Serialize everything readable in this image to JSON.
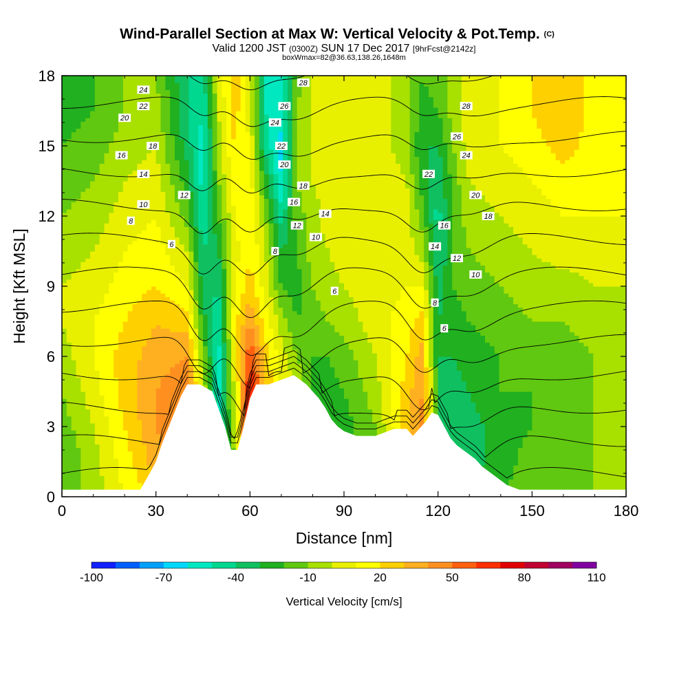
{
  "chart_data": {
    "type": "heatmap",
    "title": "Wind-Parallel Section at Max W: Vertical Velocity & Pot.Temp.",
    "title_mark": "(C)",
    "subtitle_parts": [
      "Valid 1200 JST ",
      "(0300Z)",
      " SUN 17 Dec 2017 ",
      "[9hrFcst@2142z]"
    ],
    "subtitle2": "boxWmax=82@36.63,138.26,1648m",
    "xlabel": "Distance [nm]",
    "ylabel": "Height [Kft MSL]",
    "xlim": [
      0,
      180
    ],
    "ylim": [
      0,
      18
    ],
    "xticks": [
      0,
      30,
      60,
      90,
      120,
      150,
      180
    ],
    "yticks": [
      0,
      3,
      6,
      9,
      12,
      15,
      18
    ],
    "grid": false,
    "colorbar": {
      "label": "Vertical Velocity [cm/s]",
      "tick_labels": [
        "-100",
        "-70",
        "-40",
        "-10",
        "20",
        "50",
        "80",
        "110"
      ],
      "range": [
        -100,
        110
      ],
      "colors": [
        "#1020ff",
        "#0060ff",
        "#00a0ff",
        "#00d8ff",
        "#00e8c0",
        "#00d890",
        "#10c060",
        "#20b020",
        "#60c810",
        "#a8e000",
        "#e8f000",
        "#ffff00",
        "#ffd000",
        "#ffb020",
        "#ff9020",
        "#ff6010",
        "#ff3000",
        "#e00000",
        "#c00030",
        "#a00060",
        "#8000a0"
      ]
    },
    "field": {
      "x": [
        0,
        10,
        20,
        30,
        40,
        45,
        50,
        55,
        60,
        65,
        70,
        75,
        80,
        85,
        90,
        100,
        110,
        115,
        120,
        125,
        130,
        140,
        150,
        160,
        170,
        180
      ],
      "y": [
        0,
        1.5,
        3,
        4.5,
        6,
        7.5,
        9,
        10.5,
        12,
        13.5,
        15,
        16.5,
        18
      ],
      "w": [
        [
          -20,
          -5,
          10,
          25,
          40,
          10,
          -40,
          -10,
          60,
          20,
          10,
          5,
          -10,
          -25,
          -20,
          -10,
          20,
          40,
          -20,
          -35,
          -30,
          -20,
          -15,
          -15,
          -10,
          -10
        ],
        [
          -20,
          -5,
          15,
          35,
          50,
          10,
          -45,
          -10,
          75,
          25,
          10,
          5,
          -15,
          -30,
          -25,
          -10,
          20,
          45,
          -25,
          -40,
          -35,
          -25,
          -15,
          -15,
          -10,
          -10
        ],
        [
          -15,
          0,
          20,
          40,
          55,
          5,
          -50,
          -5,
          80,
          30,
          10,
          5,
          -20,
          -30,
          -25,
          -10,
          25,
          45,
          -30,
          -40,
          -35,
          -25,
          -20,
          -15,
          -10,
          -10
        ],
        [
          -10,
          5,
          25,
          40,
          50,
          0,
          -55,
          0,
          75,
          30,
          10,
          0,
          -20,
          -25,
          -20,
          -5,
          25,
          40,
          -30,
          -35,
          -30,
          -20,
          -20,
          -15,
          -10,
          -10
        ],
        [
          -5,
          10,
          25,
          35,
          40,
          -10,
          -55,
          10,
          60,
          25,
          5,
          -10,
          -20,
          -20,
          -15,
          0,
          20,
          35,
          -30,
          -30,
          -25,
          -20,
          -15,
          -15,
          -10,
          -10
        ],
        [
          0,
          10,
          20,
          30,
          25,
          -25,
          -50,
          15,
          40,
          15,
          -5,
          -20,
          -15,
          -10,
          -5,
          5,
          15,
          25,
          -30,
          -25,
          -20,
          -15,
          -10,
          -10,
          -5,
          -5
        ],
        [
          0,
          5,
          15,
          20,
          10,
          -35,
          -40,
          10,
          25,
          5,
          -20,
          -25,
          -10,
          -5,
          0,
          5,
          10,
          10,
          -35,
          -20,
          -15,
          -10,
          -5,
          -5,
          0,
          0
        ],
        [
          -5,
          0,
          10,
          15,
          0,
          -40,
          -30,
          5,
          20,
          0,
          -30,
          -20,
          -5,
          0,
          5,
          10,
          5,
          -5,
          -40,
          -20,
          -10,
          -5,
          0,
          5,
          5,
          5
        ],
        [
          -10,
          -5,
          5,
          10,
          -15,
          -50,
          -20,
          10,
          20,
          -10,
          -45,
          -15,
          -5,
          5,
          5,
          10,
          5,
          -15,
          -45,
          -15,
          -5,
          0,
          5,
          10,
          10,
          10
        ],
        [
          -15,
          -10,
          0,
          5,
          -25,
          -55,
          -10,
          15,
          15,
          -25,
          -60,
          -10,
          0,
          5,
          5,
          10,
          0,
          -25,
          -40,
          -15,
          0,
          5,
          10,
          15,
          15,
          10
        ],
        [
          -20,
          -15,
          -5,
          0,
          -35,
          -55,
          -5,
          20,
          10,
          -45,
          -65,
          -5,
          0,
          5,
          5,
          5,
          -5,
          -30,
          -30,
          -10,
          5,
          10,
          15,
          25,
          15,
          10
        ],
        [
          -25,
          -20,
          -10,
          -5,
          -40,
          -50,
          0,
          25,
          5,
          -50,
          -55,
          -10,
          0,
          5,
          10,
          5,
          -5,
          -25,
          -20,
          -5,
          5,
          10,
          20,
          30,
          15,
          10
        ],
        [
          -25,
          -20,
          -10,
          -10,
          -40,
          -45,
          5,
          25,
          5,
          -50,
          -50,
          -15,
          0,
          5,
          10,
          5,
          -5,
          -20,
          -15,
          -5,
          5,
          10,
          20,
          30,
          15,
          10
        ]
      ]
    },
    "terrain": {
      "x": [
        0,
        25,
        28,
        30,
        32,
        35,
        38,
        40,
        44,
        48,
        52,
        54,
        56,
        58,
        60,
        62,
        66,
        70,
        74,
        78,
        82,
        84,
        86,
        88,
        90,
        94,
        100,
        106,
        110,
        112,
        114,
        116,
        118,
        120,
        122,
        124,
        126,
        128,
        130,
        132,
        134,
        136,
        140,
        142,
        146,
        150,
        155,
        160,
        170,
        180
      ],
      "h": [
        0.3,
        0.3,
        1.0,
        1.5,
        2.3,
        3.3,
        4.3,
        4.8,
        4.8,
        4.5,
        3.0,
        2.0,
        2.0,
        3.0,
        4.2,
        4.8,
        4.8,
        5.0,
        5.2,
        4.8,
        4.2,
        3.8,
        3.3,
        3.0,
        2.8,
        2.6,
        2.6,
        2.9,
        2.9,
        2.6,
        2.9,
        3.2,
        3.6,
        3.5,
        3.0,
        2.5,
        2.2,
        2.0,
        1.8,
        1.6,
        1.3,
        1.1,
        0.7,
        0.5,
        0.3,
        0.3,
        0.3,
        0.3,
        0.3,
        0.3
      ]
    },
    "contours": {
      "theta_values": [
        4,
        6,
        8,
        10,
        12,
        14,
        16,
        18,
        20,
        22,
        24,
        26,
        28
      ],
      "labels": [
        {
          "text": "24",
          "x": 26,
          "y": 17.4
        },
        {
          "text": "22",
          "x": 26,
          "y": 16.7
        },
        {
          "text": "20",
          "x": 20,
          "y": 16.2
        },
        {
          "text": "18",
          "x": 29,
          "y": 15.0
        },
        {
          "text": "16",
          "x": 19,
          "y": 14.6
        },
        {
          "text": "14",
          "x": 26,
          "y": 13.8
        },
        {
          "text": "10",
          "x": 26,
          "y": 12.5
        },
        {
          "text": "8",
          "x": 22,
          "y": 11.8
        },
        {
          "text": "12",
          "x": 39,
          "y": 12.9
        },
        {
          "text": "6",
          "x": 35,
          "y": 10.8
        },
        {
          "text": "28",
          "x": 77,
          "y": 17.7
        },
        {
          "text": "26",
          "x": 71,
          "y": 16.7
        },
        {
          "text": "24",
          "x": 68,
          "y": 16.0
        },
        {
          "text": "22",
          "x": 70,
          "y": 15.0
        },
        {
          "text": "20",
          "x": 71,
          "y": 14.2
        },
        {
          "text": "18",
          "x": 77,
          "y": 13.3
        },
        {
          "text": "16",
          "x": 74,
          "y": 12.6
        },
        {
          "text": "14",
          "x": 84,
          "y": 12.1
        },
        {
          "text": "12",
          "x": 75,
          "y": 11.6
        },
        {
          "text": "10",
          "x": 81,
          "y": 11.1
        },
        {
          "text": "8",
          "x": 68,
          "y": 10.5
        },
        {
          "text": "6",
          "x": 87,
          "y": 8.8
        },
        {
          "text": "28",
          "x": 129,
          "y": 16.7
        },
        {
          "text": "26",
          "x": 126,
          "y": 15.4
        },
        {
          "text": "24",
          "x": 129,
          "y": 14.6
        },
        {
          "text": "22",
          "x": 117,
          "y": 13.8
        },
        {
          "text": "20",
          "x": 132,
          "y": 12.9
        },
        {
          "text": "18",
          "x": 136,
          "y": 12.0
        },
        {
          "text": "16",
          "x": 122,
          "y": 11.6
        },
        {
          "text": "14",
          "x": 119,
          "y": 10.7
        },
        {
          "text": "12",
          "x": 126,
          "y": 10.2
        },
        {
          "text": "10",
          "x": 132,
          "y": 9.5
        },
        {
          "text": "8",
          "x": 119,
          "y": 8.3
        },
        {
          "text": "6",
          "x": 122,
          "y": 7.2
        }
      ]
    }
  }
}
